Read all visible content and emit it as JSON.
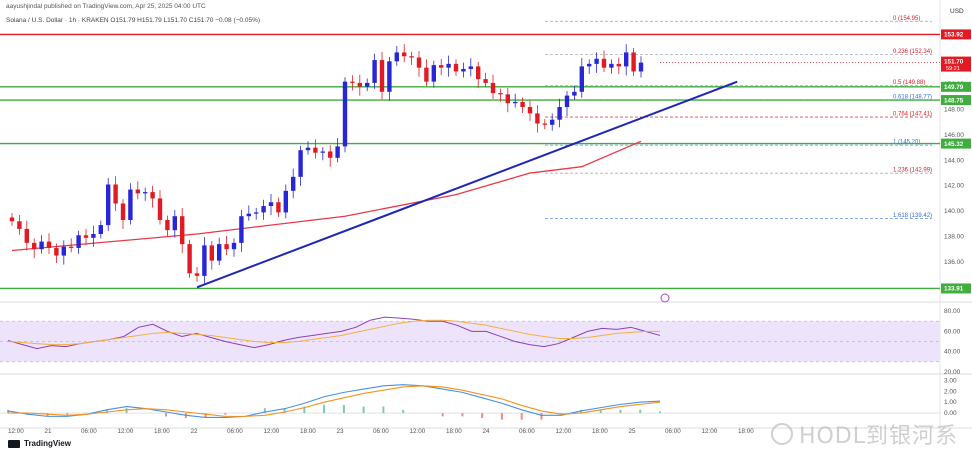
{
  "header": {
    "published": "aayushjindal published on TradingView.com, Apr 25, 2025 04:00 UTC",
    "symbol_line": "Solana / U.S. Dollar · 1h · KRAKEN  O151.79  H151.79  L151.70  C151.70  −0.08 (−0.05%)"
  },
  "footer": {
    "logo_text": "TradingView"
  },
  "watermark": {
    "text": "HODL到银河系"
  },
  "colors": {
    "up": "#2727d6",
    "down": "#e01b24",
    "trend": "#1f27b5",
    "ma": "#e8394a",
    "support": "#3fae3f",
    "resistance": "#e01b24",
    "rsi_band": "#ede4fb",
    "rsi_line": "#8f3fb8",
    "rsi_ma": "#f3b044",
    "macd": "#4a90e2",
    "signal": "#f5921e"
  },
  "chart_data": [
    {
      "type": "candlestick",
      "title": "Solana / U.S. Dollar · 1h · KRAKEN",
      "currency": "USD",
      "ylim": [
        133.0,
        156.0
      ],
      "y_ticks": [
        136.0,
        138.0,
        140.0,
        142.0,
        144.0,
        146.0,
        148.0,
        150.0
      ],
      "x_ticks": [
        "12:00",
        "21",
        "06:00",
        "12:00",
        "18:00",
        "22",
        "06:00",
        "12:00",
        "18:00",
        "23",
        "06:00",
        "12:00",
        "18:00",
        "24",
        "06:00",
        "12:00",
        "18:00",
        "25",
        "06:00",
        "12:00",
        "18:00"
      ],
      "candles_close": [
        139.2,
        138.6,
        137.5,
        137.0,
        137.6,
        137.1,
        136.5,
        137.2,
        137.1,
        138.1,
        137.9,
        138.2,
        138.9,
        142.1,
        140.6,
        139.3,
        141.7,
        141.4,
        141.5,
        141.0,
        139.3,
        138.5,
        139.6,
        137.4,
        135.1,
        134.9,
        137.3,
        136.1,
        137.4,
        137.0,
        137.5,
        139.6,
        139.8,
        139.9,
        140.4,
        140.7,
        139.9,
        141.6,
        142.7,
        144.8,
        145.0,
        144.6,
        144.7,
        144.2,
        145.1,
        150.2,
        150.1,
        149.8,
        150.1,
        151.9,
        149.4,
        151.8,
        152.5,
        152.2,
        152.1,
        151.3,
        150.2,
        151.5,
        151.3,
        151.6,
        151.0,
        151.2,
        151.4,
        150.4,
        150.1,
        149.3,
        149.2,
        148.5,
        148.6,
        148.2,
        147.7,
        146.9,
        146.8,
        147.2,
        148.2,
        149.1,
        149.4,
        151.4,
        151.6,
        152.0,
        151.3,
        151.6,
        151.4,
        152.5,
        151.0,
        151.7
      ],
      "moving_average": [
        {
          "x": 0,
          "y": 136.9
        },
        {
          "x": 25,
          "y": 138.2
        },
        {
          "x": 45,
          "y": 139.6
        },
        {
          "x": 60,
          "y": 141.3
        },
        {
          "x": 70,
          "y": 143.0
        },
        {
          "x": 77,
          "y": 143.5
        },
        {
          "x": 85,
          "y": 145.5
        }
      ],
      "trend_line": {
        "from": {
          "x": 25,
          "y": 134.0
        },
        "to": {
          "x": 98,
          "y": 150.2
        }
      },
      "horizontal_levels": [
        {
          "label": "153.92",
          "value": 153.92,
          "kind": "resistance"
        },
        {
          "label": "149.79",
          "value": 149.79,
          "kind": "support"
        },
        {
          "label": "148.75",
          "value": 148.75,
          "kind": "support"
        },
        {
          "label": "145.32",
          "value": 145.32,
          "kind": "support"
        },
        {
          "label": "133.91",
          "value": 133.91,
          "kind": "support"
        }
      ],
      "last_price": {
        "label": "151.70",
        "countdown": "59:21"
      },
      "fib_levels": [
        {
          "ratio": "0",
          "value": 154.95,
          "text": "0 (154.95)"
        },
        {
          "ratio": "0.236",
          "value": 152.34,
          "text": "0.236 (152.34)"
        },
        {
          "ratio": "0.5",
          "value": 149.88,
          "text": "0.5 (149.88)"
        },
        {
          "ratio": "0.618",
          "value": 148.77,
          "text": "0.618 (148.77)"
        },
        {
          "ratio": "0.764",
          "value": 147.41,
          "text": "0.764 (147.41)"
        },
        {
          "ratio": "1",
          "value": 145.2,
          "text": "1 (145.20)"
        },
        {
          "ratio": "1.236",
          "value": 142.99,
          "text": "1.236 (142.99)"
        },
        {
          "ratio": "1.618",
          "value": 139.42,
          "text": "1.618 (139.42)"
        }
      ]
    },
    {
      "type": "line",
      "title": "",
      "ylim": [
        20,
        85
      ],
      "y_ticks": [
        80.0,
        60.0,
        40.0,
        20.0
      ],
      "band": [
        30,
        70
      ],
      "series": [
        {
          "values": [
            51,
            47,
            43,
            46,
            45,
            48,
            50,
            52,
            55,
            64,
            67,
            60,
            55,
            58,
            54,
            50,
            47,
            44,
            47,
            51,
            54,
            56,
            58,
            60,
            64,
            71,
            74,
            73,
            72,
            70,
            70,
            66,
            60,
            60,
            55,
            50,
            47,
            45,
            48,
            54,
            60,
            63,
            62,
            64,
            60,
            56
          ]
        },
        {
          "values": [
            50,
            49,
            48,
            47,
            47,
            48,
            50,
            52,
            54,
            56,
            58,
            59,
            58,
            57,
            56,
            54,
            52,
            50,
            49,
            49,
            50,
            52,
            54,
            56,
            59,
            62,
            65,
            68,
            70,
            71,
            71,
            70,
            68,
            66,
            63,
            60,
            57,
            55,
            53,
            53,
            54,
            56,
            58,
            59,
            60,
            60
          ]
        }
      ]
    },
    {
      "type": "line",
      "title": "",
      "ylim": [
        -1.0,
        3.4
      ],
      "y_ticks": [
        0.0,
        1.0,
        2.0,
        3.0
      ],
      "series": [
        {
          "values": [
            0.2,
            -0.1,
            -0.3,
            -0.3,
            -0.1,
            0.3,
            0.6,
            0.4,
            0.1,
            -0.2,
            -0.4,
            -0.4,
            -0.3,
            0.1,
            0.4,
            0.9,
            1.5,
            1.9,
            2.2,
            2.5,
            2.6,
            2.5,
            2.2,
            1.9,
            1.4,
            0.9,
            0.3,
            -0.2,
            -0.2,
            0.2,
            0.5,
            0.8,
            1.0,
            1.1
          ]
        },
        {
          "values": [
            0.0,
            0.0,
            -0.1,
            -0.2,
            -0.1,
            0.1,
            0.3,
            0.4,
            0.3,
            0.1,
            -0.1,
            -0.3,
            -0.3,
            -0.2,
            0.1,
            0.5,
            1.0,
            1.4,
            1.8,
            2.1,
            2.4,
            2.5,
            2.4,
            2.1,
            1.7,
            1.3,
            0.7,
            0.2,
            -0.1,
            0.0,
            0.3,
            0.6,
            0.8,
            1.0
          ]
        }
      ]
    }
  ]
}
